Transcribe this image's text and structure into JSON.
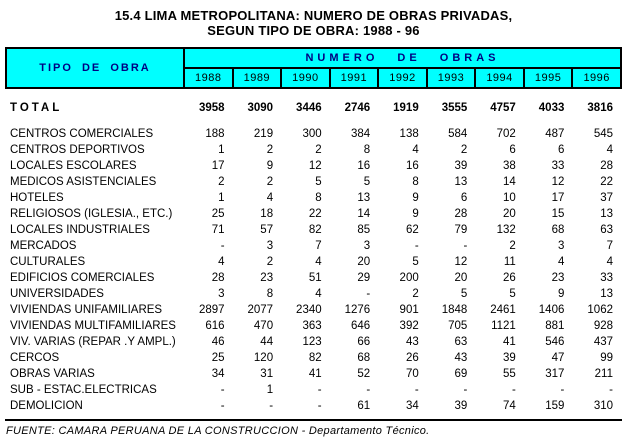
{
  "title": {
    "line1": "15.4  LIMA METROPOLITANA: NUMERO DE OBRAS PRIVADAS,",
    "line2": "SEGUN TIPO DE OBRA: 1988 - 96"
  },
  "colors": {
    "header_background": "#00ffff",
    "header_text": "#000080",
    "border": "#000000"
  },
  "table": {
    "col_header": "TIPO DE OBRA",
    "group_header": "NUMERO DE OBRAS",
    "years": [
      "1988",
      "1989",
      "1990",
      "1991",
      "1992",
      "1993",
      "1994",
      "1995",
      "1996"
    ],
    "total_row": {
      "label": "TOTAL",
      "values": [
        "3958",
        "3090",
        "3446",
        "2746",
        "1919",
        "3555",
        "4757",
        "4033",
        "3816"
      ]
    },
    "rows": [
      {
        "label": "CENTROS COMERCIALES",
        "values": [
          "188",
          "219",
          "300",
          "384",
          "138",
          "584",
          "702",
          "487",
          "545"
        ]
      },
      {
        "label": "CENTROS DEPORTIVOS",
        "values": [
          "1",
          "2",
          "2",
          "8",
          "4",
          "2",
          "6",
          "6",
          "4"
        ]
      },
      {
        "label": "LOCALES ESCOLARES",
        "values": [
          "17",
          "9",
          "12",
          "16",
          "16",
          "39",
          "38",
          "33",
          "28"
        ]
      },
      {
        "label": "MEDICOS ASISTENCIALES",
        "values": [
          "2",
          "2",
          "5",
          "5",
          "8",
          "13",
          "14",
          "12",
          "22"
        ]
      },
      {
        "label": "HOTELES",
        "values": [
          "1",
          "4",
          "8",
          "13",
          "9",
          "6",
          "10",
          "17",
          "37"
        ]
      },
      {
        "label": "RELIGIOSOS (IGLESIA., ETC.)",
        "values": [
          "25",
          "18",
          "22",
          "14",
          "9",
          "28",
          "20",
          "15",
          "13"
        ]
      },
      {
        "label": "LOCALES  INDUSTRIALES",
        "values": [
          "71",
          "57",
          "82",
          "85",
          "62",
          "79",
          "132",
          "68",
          "63"
        ]
      },
      {
        "label": "MERCADOS",
        "values": [
          "-",
          "3",
          "7",
          "3",
          "-",
          "-",
          "2",
          "3",
          "7"
        ]
      },
      {
        "label": "CULTURALES",
        "values": [
          "4",
          "2",
          "4",
          "20",
          "5",
          "12",
          "11",
          "4",
          "4"
        ]
      },
      {
        "label": "EDIFICIOS COMERCIALES",
        "values": [
          "28",
          "23",
          "51",
          "29",
          "200",
          "20",
          "26",
          "23",
          "33"
        ]
      },
      {
        "label": "UNIVERSIDADES",
        "values": [
          "3",
          "8",
          "4",
          "-",
          "2",
          "5",
          "5",
          "9",
          "13"
        ]
      },
      {
        "label": "VIVIENDAS UNIFAMILIARES",
        "values": [
          "2897",
          "2077",
          "2340",
          "1276",
          "901",
          "1848",
          "2461",
          "1406",
          "1062"
        ]
      },
      {
        "label": "VIVIENDAS MULTIFAMILIARES",
        "values": [
          "616",
          "470",
          "363",
          "646",
          "392",
          "705",
          "1121",
          "881",
          "928"
        ]
      },
      {
        "label": "VIV. VARIAS (REPAR .Y AMPL.)",
        "values": [
          "46",
          "44",
          "123",
          "66",
          "43",
          "63",
          "41",
          "546",
          "437"
        ]
      },
      {
        "label": "CERCOS",
        "values": [
          "25",
          "120",
          "82",
          "68",
          "26",
          "43",
          "39",
          "47",
          "99"
        ]
      },
      {
        "label": "OBRAS VARIAS",
        "values": [
          "34",
          "31",
          "41",
          "52",
          "70",
          "69",
          "55",
          "317",
          "211"
        ]
      },
      {
        "label": "SUB - ESTAC.ELECTRICAS",
        "values": [
          "-",
          "1",
          "-",
          "-",
          "-",
          "-",
          "-",
          "-",
          "-"
        ]
      },
      {
        "label": "DEMOLICION",
        "values": [
          "-",
          "-",
          "-",
          "61",
          "34",
          "39",
          "74",
          "159",
          "310"
        ]
      }
    ]
  },
  "footer": {
    "source": "FUENTE: CAMARA PERUANA DE LA CONSTRUCCION - Departamento Técnico."
  }
}
